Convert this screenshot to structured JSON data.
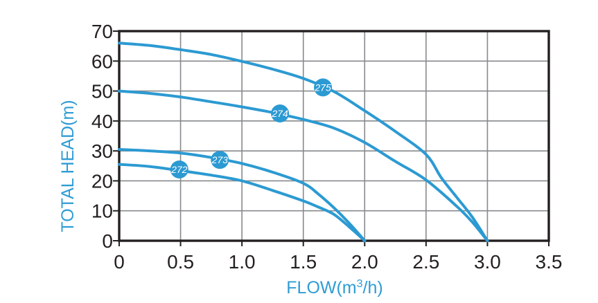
{
  "chart_data": {
    "type": "line",
    "title": "",
    "xlabel": {
      "pre": "FLOW(m",
      "sup": "3",
      "post": "/h)"
    },
    "ylabel": "TOTAL HEAD(m)",
    "xlim": [
      0,
      3.5
    ],
    "ylim": [
      0,
      70
    ],
    "grid": true,
    "x_ticks": {
      "values": [
        0,
        0.5,
        1,
        1.5,
        2,
        2.5,
        3,
        3.5
      ],
      "labels": [
        "0",
        "0.5",
        "1.0",
        "1.5",
        "2.0",
        "2.5",
        "3.0",
        "3.5"
      ]
    },
    "y_ticks": {
      "values": [
        0,
        10,
        20,
        30,
        40,
        50,
        60,
        70
      ],
      "labels": [
        "0",
        "10",
        "20",
        "30",
        "40",
        "50",
        "60",
        "70"
      ]
    },
    "series": [
      {
        "name": "272",
        "badge": {
          "x": 0.49,
          "y": 23.8
        },
        "points": [
          [
            0,
            25.5
          ],
          [
            0.25,
            24.8
          ],
          [
            0.5,
            23.4
          ],
          [
            0.75,
            21.9
          ],
          [
            1,
            20
          ],
          [
            1.25,
            16.8
          ],
          [
            1.5,
            13.3
          ],
          [
            1.625,
            11.2
          ],
          [
            1.75,
            8.8
          ],
          [
            1.875,
            4.6
          ],
          [
            2,
            0
          ]
        ]
      },
      {
        "name": "273",
        "badge": {
          "x": 0.82,
          "y": 27
        },
        "points": [
          [
            0,
            30.5
          ],
          [
            0.25,
            30
          ],
          [
            0.5,
            29.3
          ],
          [
            0.75,
            27.8
          ],
          [
            1,
            25.8
          ],
          [
            1.25,
            22.9
          ],
          [
            1.5,
            19.2
          ],
          [
            1.625,
            15.5
          ],
          [
            1.75,
            11
          ],
          [
            1.875,
            5.8
          ],
          [
            2,
            0
          ]
        ]
      },
      {
        "name": "274",
        "badge": {
          "x": 1.31,
          "y": 42.5
        },
        "points": [
          [
            0,
            50
          ],
          [
            0.25,
            49.2
          ],
          [
            0.5,
            48
          ],
          [
            0.75,
            46.4
          ],
          [
            1,
            44.7
          ],
          [
            1.25,
            42.8
          ],
          [
            1.5,
            40.5
          ],
          [
            1.75,
            37.6
          ],
          [
            2,
            32.8
          ],
          [
            2.25,
            26.5
          ],
          [
            2.5,
            20.3
          ],
          [
            2.75,
            11.5
          ],
          [
            2.875,
            6.3
          ],
          [
            3,
            0
          ]
        ]
      },
      {
        "name": "275",
        "badge": {
          "x": 1.66,
          "y": 51.2
        },
        "points": [
          [
            0,
            66
          ],
          [
            0.25,
            65.2
          ],
          [
            0.5,
            63.8
          ],
          [
            0.75,
            62.2
          ],
          [
            1,
            59.9
          ],
          [
            1.25,
            57.3
          ],
          [
            1.5,
            54.2
          ],
          [
            1.75,
            49.8
          ],
          [
            2,
            43.4
          ],
          [
            2.25,
            36.5
          ],
          [
            2.5,
            28.8
          ],
          [
            2.625,
            21
          ],
          [
            2.75,
            14.5
          ],
          [
            2.875,
            8
          ],
          [
            3,
            0
          ]
        ]
      }
    ],
    "legend": "none",
    "colors": {
      "curve": "#2c9ad2",
      "grid": "#87898c",
      "axis": "#231f20",
      "tick_label": "#231f20",
      "axis_title": "#2e9cd4",
      "badge_text": "#ffffff",
      "background": "#ffffff"
    }
  }
}
